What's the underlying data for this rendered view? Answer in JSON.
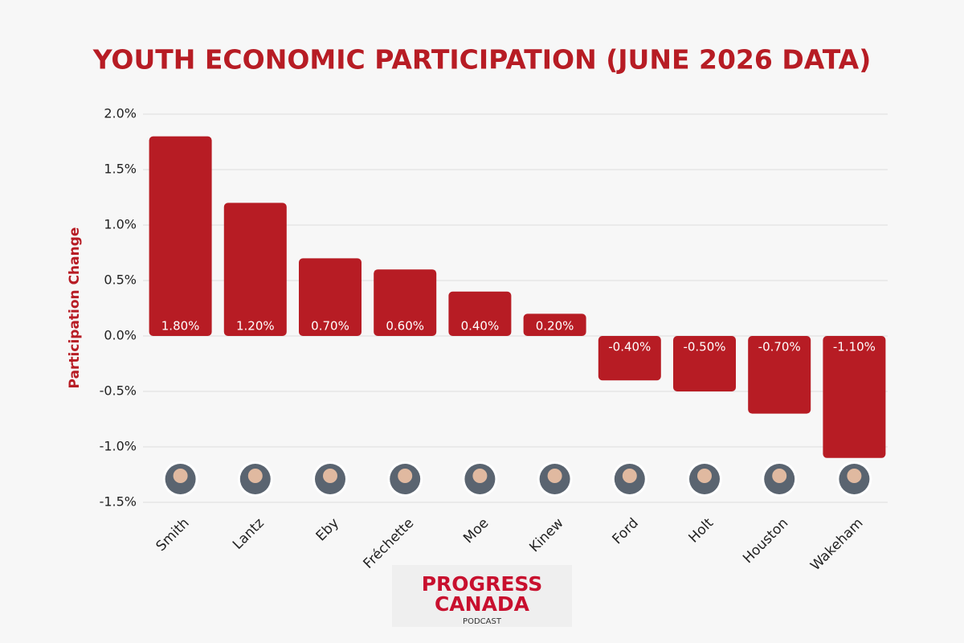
{
  "chart_data": {
    "type": "bar",
    "title": "YOUTH ECONOMIC PARTICIPATION (JUNE 2026 DATA)",
    "y_label": "Participation Change",
    "categories": [
      "Smith",
      "Lantz",
      "Eby",
      "Fréchette",
      "Moe",
      "Kinew",
      "Ford",
      "Holt",
      "Houston",
      "Wakeham"
    ],
    "values": [
      1.8,
      1.2,
      0.7,
      0.6,
      0.4,
      0.2,
      -0.4,
      -0.5,
      -0.7,
      -1.1
    ],
    "value_labels": [
      "1.80%",
      "1.20%",
      "0.70%",
      "0.60%",
      "0.40%",
      "0.20%",
      "-0.40%",
      "-0.50%",
      "-0.70%",
      "-1.10%"
    ],
    "color": "#b71c24",
    "ylim": [
      -1.5,
      2.0
    ],
    "yticks": [
      {
        "value": 2.0,
        "label": "2.0%"
      },
      {
        "value": 1.5,
        "label": "1.5%"
      },
      {
        "value": 1.0,
        "label": "1.0%"
      },
      {
        "value": 0.5,
        "label": "0.5%"
      },
      {
        "value": 0.0,
        "label": "0.0%"
      },
      {
        "value": -0.5,
        "label": "-0.5%"
      },
      {
        "value": -1.0,
        "label": "-1.0%"
      },
      {
        "value": -1.5,
        "label": "-1.5%"
      }
    ],
    "grid": true
  },
  "logo": {
    "line1": "PROGRESS",
    "line2": "CANADA",
    "line3": "PODCAST"
  }
}
